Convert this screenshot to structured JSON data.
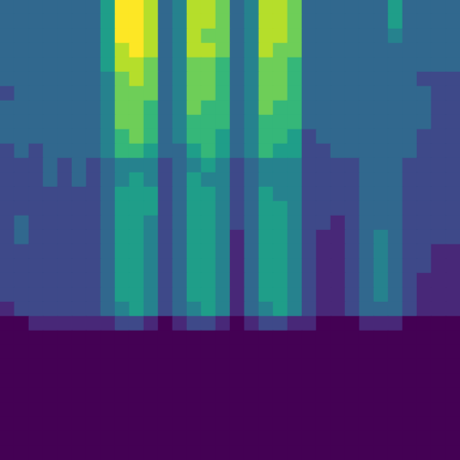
{
  "chart_data": {
    "type": "heatmap",
    "tick_labels": false,
    "grid": false,
    "cells": [
      [
        3,
        3,
        3,
        3,
        3,
        3,
        3,
        5,
        9,
        9,
        8,
        3,
        4,
        8,
        8,
        7,
        3,
        4,
        8,
        8,
        7,
        3,
        3,
        3,
        3,
        3,
        3,
        5,
        3,
        3,
        3,
        3
      ],
      [
        3,
        3,
        3,
        3,
        3,
        3,
        3,
        5,
        9,
        9,
        8,
        3,
        4,
        8,
        8,
        7,
        3,
        4,
        8,
        8,
        7,
        3,
        3,
        3,
        3,
        3,
        3,
        5,
        3,
        3,
        3,
        3
      ],
      [
        3,
        3,
        3,
        3,
        3,
        3,
        3,
        5,
        9,
        9,
        8,
        3,
        4,
        8,
        7,
        7,
        3,
        4,
        8,
        8,
        7,
        3,
        3,
        3,
        3,
        3,
        3,
        4,
        3,
        3,
        3,
        3
      ],
      [
        3,
        3,
        3,
        3,
        3,
        3,
        3,
        5,
        8,
        9,
        8,
        3,
        4,
        8,
        8,
        7,
        3,
        4,
        8,
        7,
        7,
        3,
        3,
        3,
        3,
        3,
        3,
        3,
        3,
        3,
        3,
        3
      ],
      [
        3,
        3,
        3,
        3,
        3,
        3,
        3,
        5,
        8,
        8,
        7,
        3,
        4,
        7,
        7,
        6,
        3,
        4,
        7,
        7,
        6,
        3,
        3,
        3,
        3,
        3,
        3,
        3,
        3,
        3,
        3,
        3
      ],
      [
        3,
        3,
        3,
        3,
        3,
        3,
        3,
        4,
        7,
        8,
        7,
        3,
        4,
        7,
        7,
        6,
        3,
        4,
        7,
        7,
        6,
        3,
        3,
        3,
        3,
        3,
        3,
        3,
        3,
        2,
        2,
        2
      ],
      [
        2,
        3,
        3,
        3,
        3,
        3,
        3,
        4,
        7,
        7,
        7,
        3,
        4,
        7,
        7,
        6,
        3,
        4,
        7,
        7,
        6,
        3,
        3,
        3,
        3,
        3,
        3,
        3,
        3,
        3,
        2,
        2
      ],
      [
        3,
        3,
        3,
        3,
        3,
        3,
        3,
        4,
        7,
        7,
        6,
        3,
        4,
        7,
        6,
        6,
        3,
        4,
        7,
        6,
        6,
        3,
        3,
        3,
        3,
        3,
        3,
        3,
        3,
        3,
        2,
        2
      ],
      [
        3,
        3,
        3,
        3,
        3,
        3,
        3,
        4,
        7,
        7,
        6,
        3,
        4,
        6,
        6,
        6,
        3,
        4,
        6,
        6,
        6,
        3,
        3,
        3,
        3,
        3,
        3,
        3,
        3,
        3,
        2,
        2
      ],
      [
        3,
        3,
        3,
        3,
        3,
        3,
        3,
        4,
        6,
        7,
        6,
        3,
        4,
        6,
        6,
        5,
        3,
        4,
        6,
        6,
        5,
        2,
        3,
        3,
        3,
        3,
        3,
        3,
        3,
        2,
        2,
        2
      ],
      [
        2,
        3,
        2,
        3,
        3,
        3,
        3,
        4,
        6,
        6,
        5,
        3,
        3,
        5,
        6,
        5,
        3,
        4,
        6,
        5,
        5,
        2,
        2,
        3,
        3,
        3,
        3,
        3,
        3,
        2,
        2,
        2
      ],
      [
        2,
        2,
        2,
        3,
        2,
        3,
        2,
        3,
        4,
        4,
        4,
        2,
        3,
        4,
        5,
        4,
        2,
        3,
        4,
        4,
        4,
        2,
        2,
        2,
        2,
        3,
        3,
        3,
        2,
        2,
        2,
        2
      ],
      [
        2,
        2,
        2,
        3,
        2,
        3,
        2,
        3,
        4,
        5,
        4,
        2,
        3,
        5,
        4,
        4,
        2,
        3,
        4,
        4,
        4,
        2,
        2,
        2,
        2,
        3,
        3,
        3,
        2,
        2,
        2,
        2
      ],
      [
        2,
        2,
        2,
        2,
        2,
        2,
        2,
        3,
        5,
        5,
        5,
        2,
        3,
        5,
        5,
        4,
        2,
        3,
        5,
        4,
        4,
        2,
        2,
        2,
        2,
        3,
        3,
        3,
        2,
        2,
        2,
        2
      ],
      [
        2,
        2,
        2,
        2,
        2,
        2,
        2,
        3,
        5,
        5,
        5,
        2,
        3,
        5,
        5,
        4,
        2,
        3,
        5,
        5,
        4,
        2,
        2,
        2,
        2,
        3,
        3,
        3,
        2,
        2,
        2,
        2
      ],
      [
        2,
        3,
        2,
        2,
        2,
        2,
        2,
        3,
        5,
        5,
        4,
        2,
        3,
        5,
        5,
        4,
        2,
        3,
        5,
        5,
        4,
        2,
        2,
        1,
        2,
        3,
        3,
        3,
        2,
        2,
        2,
        2
      ],
      [
        2,
        3,
        2,
        2,
        2,
        2,
        2,
        3,
        5,
        5,
        4,
        2,
        3,
        5,
        5,
        4,
        1,
        3,
        5,
        5,
        4,
        2,
        1,
        1,
        2,
        3,
        4,
        3,
        2,
        2,
        2,
        2
      ],
      [
        2,
        2,
        2,
        2,
        2,
        2,
        2,
        3,
        5,
        5,
        4,
        2,
        3,
        5,
        5,
        4,
        1,
        3,
        5,
        5,
        4,
        2,
        1,
        1,
        2,
        3,
        4,
        3,
        2,
        2,
        1,
        1
      ],
      [
        2,
        2,
        2,
        2,
        2,
        2,
        2,
        3,
        5,
        5,
        4,
        2,
        3,
        5,
        5,
        4,
        1,
        3,
        5,
        5,
        4,
        2,
        1,
        1,
        2,
        3,
        4,
        3,
        2,
        2,
        1,
        1
      ],
      [
        2,
        2,
        2,
        2,
        2,
        2,
        2,
        3,
        5,
        5,
        4,
        2,
        3,
        5,
        5,
        4,
        1,
        3,
        5,
        5,
        4,
        2,
        1,
        1,
        2,
        3,
        4,
        3,
        2,
        1,
        1,
        1
      ],
      [
        2,
        2,
        2,
        2,
        2,
        2,
        2,
        3,
        5,
        5,
        4,
        2,
        3,
        5,
        5,
        4,
        1,
        3,
        5,
        5,
        4,
        2,
        1,
        1,
        2,
        3,
        4,
        3,
        2,
        1,
        1,
        1
      ],
      [
        1,
        2,
        2,
        2,
        2,
        2,
        2,
        3,
        4,
        5,
        4,
        2,
        3,
        4,
        5,
        4,
        1,
        3,
        4,
        5,
        4,
        2,
        1,
        1,
        2,
        3,
        3,
        3,
        2,
        1,
        1,
        1
      ],
      [
        0,
        0,
        1,
        1,
        1,
        1,
        1,
        1,
        2,
        2,
        1,
        0,
        1,
        2,
        2,
        1,
        0,
        1,
        2,
        2,
        1,
        1,
        0,
        0,
        0,
        1,
        1,
        1,
        0,
        0,
        0,
        0
      ],
      [
        0,
        0,
        0,
        0,
        0,
        0,
        0,
        0,
        0,
        0,
        0,
        0,
        0,
        0,
        0,
        0,
        0,
        0,
        0,
        0,
        0,
        0,
        0,
        0,
        0,
        0,
        0,
        0,
        0,
        0,
        0,
        0
      ],
      [
        0,
        0,
        0,
        0,
        0,
        0,
        0,
        0,
        0,
        0,
        0,
        0,
        0,
        0,
        0,
        0,
        0,
        0,
        0,
        0,
        0,
        0,
        0,
        0,
        0,
        0,
        0,
        0,
        0,
        0,
        0,
        0
      ],
      [
        0,
        0,
        0,
        0,
        0,
        0,
        0,
        0,
        0,
        0,
        0,
        0,
        0,
        0,
        0,
        0,
        0,
        0,
        0,
        0,
        0,
        0,
        0,
        0,
        0,
        0,
        0,
        0,
        0,
        0,
        0,
        0
      ],
      [
        0,
        0,
        0,
        0,
        0,
        0,
        0,
        0,
        0,
        0,
        0,
        0,
        0,
        0,
        0,
        0,
        0,
        0,
        0,
        0,
        0,
        0,
        0,
        0,
        0,
        0,
        0,
        0,
        0,
        0,
        0,
        0
      ],
      [
        0,
        0,
        0,
        0,
        0,
        0,
        0,
        0,
        0,
        0,
        0,
        0,
        0,
        0,
        0,
        0,
        0,
        0,
        0,
        0,
        0,
        0,
        0,
        0,
        0,
        0,
        0,
        0,
        0,
        0,
        0,
        0
      ],
      [
        0,
        0,
        0,
        0,
        0,
        0,
        0,
        0,
        0,
        0,
        0,
        0,
        0,
        0,
        0,
        0,
        0,
        0,
        0,
        0,
        0,
        0,
        0,
        0,
        0,
        0,
        0,
        0,
        0,
        0,
        0,
        0
      ],
      [
        0,
        0,
        0,
        0,
        0,
        0,
        0,
        0,
        0,
        0,
        0,
        0,
        0,
        0,
        0,
        0,
        0,
        0,
        0,
        0,
        0,
        0,
        0,
        0,
        0,
        0,
        0,
        0,
        0,
        0,
        0,
        0
      ],
      [
        0,
        0,
        0,
        0,
        0,
        0,
        0,
        0,
        0,
        0,
        0,
        0,
        0,
        0,
        0,
        0,
        0,
        0,
        0,
        0,
        0,
        0,
        0,
        0,
        0,
        0,
        0,
        0,
        0,
        0,
        0,
        0
      ],
      [
        0,
        0,
        0,
        0,
        0,
        0,
        0,
        0,
        0,
        0,
        0,
        0,
        0,
        0,
        0,
        0,
        0,
        0,
        0,
        0,
        0,
        0,
        0,
        0,
        0,
        0,
        0,
        0,
        0,
        0,
        0,
        0
      ]
    ]
  }
}
